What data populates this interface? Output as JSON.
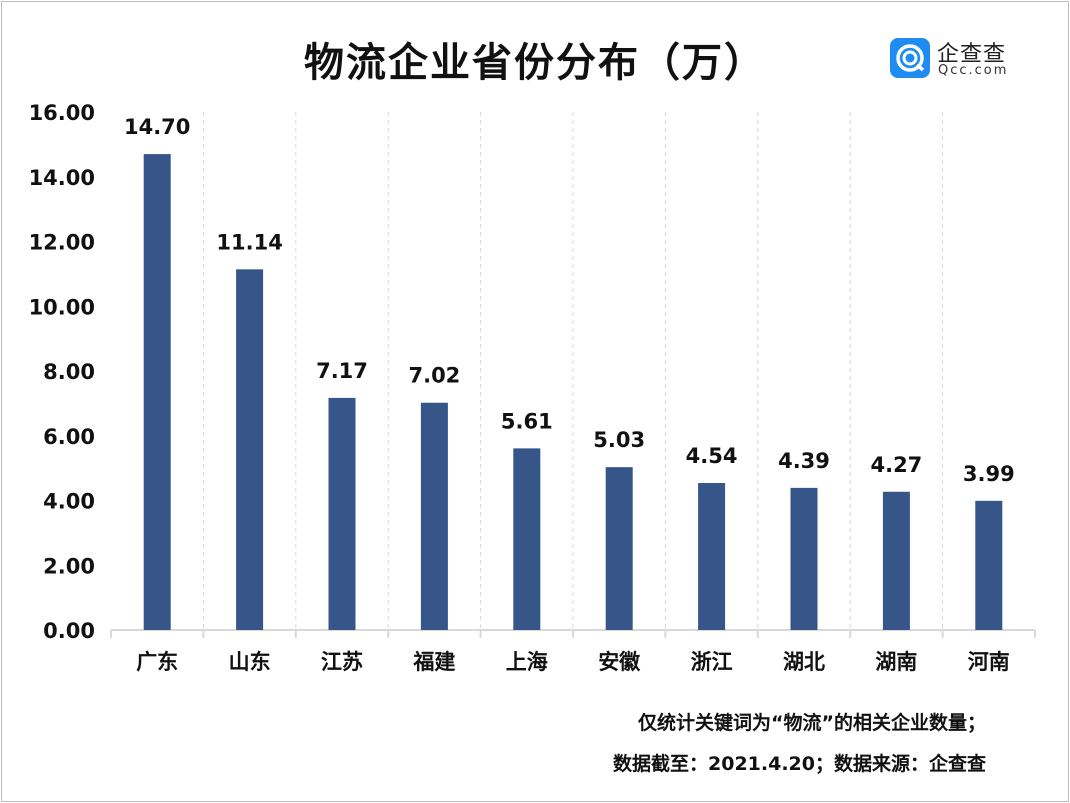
{
  "title": "物流企业省份分布（万）",
  "logo": {
    "name_cn": "企查查",
    "name_en": "Qcc.com",
    "color": "#1e8cf0"
  },
  "notes": [
    "仅统计关键词为“物流”的相关企业数量；",
    "数据截至：2021.4.20；数据来源：企查查"
  ],
  "chart_data": {
    "type": "bar",
    "title": "物流企业省份分布（万）",
    "categories": [
      "广东",
      "山东",
      "江苏",
      "福建",
      "上海",
      "安徽",
      "浙江",
      "湖北",
      "湖南",
      "河南"
    ],
    "values": [
      14.7,
      11.14,
      7.17,
      7.02,
      5.61,
      5.03,
      4.54,
      4.39,
      4.27,
      3.99
    ],
    "data_labels": [
      "14.70",
      "11.14",
      "7.17",
      "7.02",
      "5.61",
      "5.03",
      "4.54",
      "4.39",
      "4.27",
      "3.99"
    ],
    "yticks": [
      "0.00",
      "2.00",
      "4.00",
      "6.00",
      "8.00",
      "10.00",
      "12.00",
      "14.00",
      "16.00"
    ],
    "ylim": [
      0,
      16
    ],
    "bar_color": "#36568a",
    "grid": "vertical dashed separators",
    "legend": "none"
  }
}
